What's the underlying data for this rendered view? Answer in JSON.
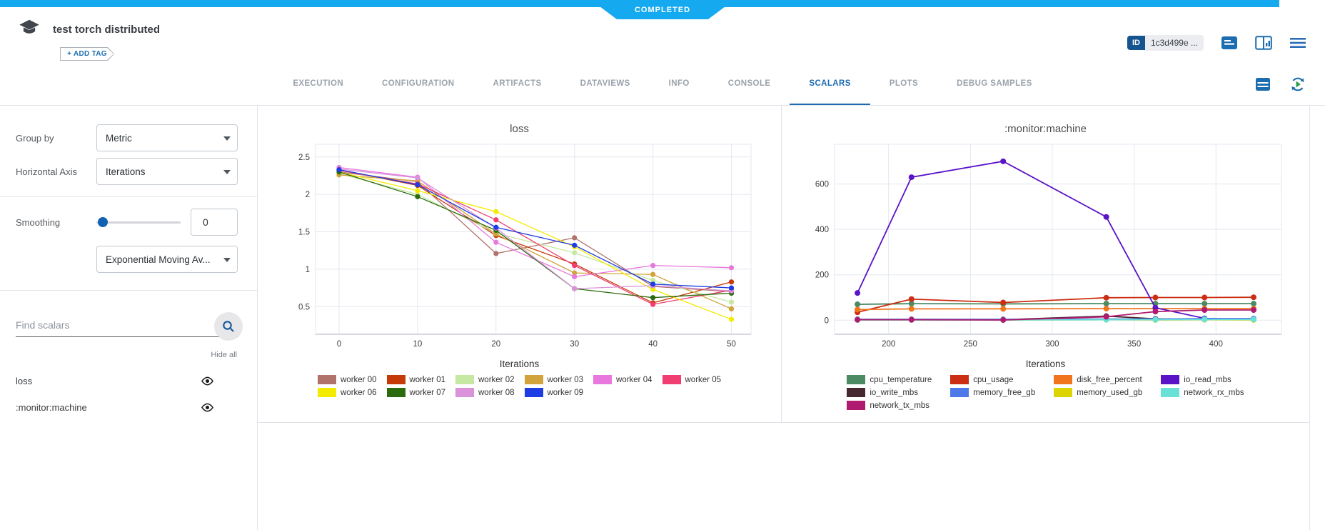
{
  "status_badge": "COMPLETED",
  "header": {
    "title": "test torch distributed",
    "add_tag_label": "+ ADD TAG",
    "id_label": "ID",
    "id_value": "1c3d499e ..."
  },
  "icons": {
    "logo": "graduation-cap",
    "comment": "description-lines",
    "panel": "details-panel",
    "menu": "hamburger",
    "table": "table-view",
    "refresh": "auto-refresh-play",
    "search": "magnifier",
    "eye": "visibility"
  },
  "tabs": [
    {
      "label": "EXECUTION",
      "active": false
    },
    {
      "label": "CONFIGURATION",
      "active": false
    },
    {
      "label": "ARTIFACTS",
      "active": false
    },
    {
      "label": "DATAVIEWS",
      "active": false
    },
    {
      "label": "INFO",
      "active": false
    },
    {
      "label": "CONSOLE",
      "active": false
    },
    {
      "label": "SCALARS",
      "active": true
    },
    {
      "label": "PLOTS",
      "active": false
    },
    {
      "label": "DEBUG SAMPLES",
      "active": false
    }
  ],
  "sidebar": {
    "group_by_label": "Group by",
    "group_by_value": "Metric",
    "horizontal_axis_label": "Horizontal Axis",
    "horizontal_axis_value": "Iterations",
    "smoothing_label": "Smoothing",
    "smoothing_value": "0",
    "smoothing_type_value": "Exponential Moving Av...",
    "search_placeholder": "Find scalars",
    "hide_all_label": "Hide all",
    "metrics": [
      {
        "label": "loss"
      },
      {
        "label": ":monitor:machine"
      }
    ]
  },
  "chart_data": [
    {
      "type": "line",
      "title": "loss",
      "xlabel": "Iterations",
      "x": [
        0,
        10,
        20,
        30,
        40,
        50
      ],
      "xlim": [
        -3,
        52.5
      ],
      "ylim": [
        0.13,
        2.67
      ],
      "xticks": [
        0,
        10,
        20,
        30,
        40,
        50
      ],
      "yticks": [
        0.5,
        1,
        1.5,
        2,
        2.5
      ],
      "grid": true,
      "legend_position": "bottom",
      "series": [
        {
          "name": "worker 00",
          "color": "#b0736b",
          "values": [
            2.3,
            2.17,
            1.21,
            1.42,
            0.77,
            0.7
          ]
        },
        {
          "name": "worker 01",
          "color": "#c53a08",
          "values": [
            2.33,
            2.12,
            1.45,
            1.07,
            0.55,
            0.83
          ]
        },
        {
          "name": "worker 02",
          "color": "#c6e8a2",
          "values": [
            2.28,
            2.0,
            1.48,
            1.22,
            0.85,
            0.56
          ]
        },
        {
          "name": "worker 03",
          "color": "#d1a33c",
          "values": [
            2.26,
            2.18,
            1.47,
            0.95,
            0.93,
            0.47
          ]
        },
        {
          "name": "worker 04",
          "color": "#e878de",
          "values": [
            2.36,
            2.23,
            1.36,
            0.9,
            1.05,
            1.02
          ]
        },
        {
          "name": "worker 05",
          "color": "#f03e70",
          "values": [
            2.32,
            2.14,
            1.66,
            1.05,
            0.53,
            0.72
          ]
        },
        {
          "name": "worker 06",
          "color": "#f4eb02",
          "values": [
            2.3,
            2.05,
            1.77,
            1.3,
            0.73,
            0.33
          ]
        },
        {
          "name": "worker 07",
          "color": "#2c6a0e",
          "values": [
            2.3,
            1.97,
            1.52,
            0.74,
            0.62,
            0.68
          ]
        },
        {
          "name": "worker 08",
          "color": "#da92da",
          "values": [
            2.34,
            2.22,
            1.55,
            0.74,
            0.78,
            0.71
          ]
        },
        {
          "name": "worker 09",
          "color": "#1d3ce3",
          "values": [
            2.33,
            2.13,
            1.56,
            1.32,
            0.8,
            0.75
          ]
        }
      ]
    },
    {
      "type": "line",
      "title": ":monitor:machine",
      "xlabel": "Iterations",
      "x": [
        181,
        214,
        270,
        333,
        363,
        393,
        423
      ],
      "xlim": [
        167,
        440
      ],
      "ylim": [
        -62,
        775
      ],
      "xticks": [
        200,
        250,
        300,
        350,
        400
      ],
      "yticks": [
        0,
        200,
        400,
        600
      ],
      "grid": true,
      "legend_position": "bottom",
      "series": [
        {
          "name": "cpu_temperature",
          "color": "#4c8a64",
          "values": [
            70,
            73,
            72,
            73,
            73,
            73,
            73
          ]
        },
        {
          "name": "cpu_usage",
          "color": "#cb2e12",
          "values": [
            35,
            93,
            78,
            99,
            100,
            100,
            101
          ]
        },
        {
          "name": "disk_free_percent",
          "color": "#f1751d",
          "values": [
            47,
            50,
            50,
            51,
            51,
            51,
            51
          ]
        },
        {
          "name": "io_read_mbs",
          "color": "#5a13c7",
          "values": [
            120,
            630,
            700,
            455,
            55,
            8,
            3
          ]
        },
        {
          "name": "io_write_mbs",
          "color": "#482830",
          "values": [
            2,
            2,
            2,
            18,
            6,
            3,
            3
          ]
        },
        {
          "name": "memory_free_gb",
          "color": "#4d7ae8",
          "values": [
            4,
            4,
            4,
            5,
            5,
            7,
            7
          ]
        },
        {
          "name": "memory_used_gb",
          "color": "#dcd405",
          "values": [
            1,
            1,
            1,
            2,
            1,
            2,
            1
          ]
        },
        {
          "name": "network_rx_mbs",
          "color": "#69e1d7",
          "values": [
            1,
            1,
            1,
            2,
            2,
            3,
            3
          ]
        },
        {
          "name": "network_tx_mbs",
          "color": "#b01a70",
          "values": [
            2,
            2,
            1,
            15,
            38,
            45,
            45
          ]
        }
      ]
    }
  ]
}
